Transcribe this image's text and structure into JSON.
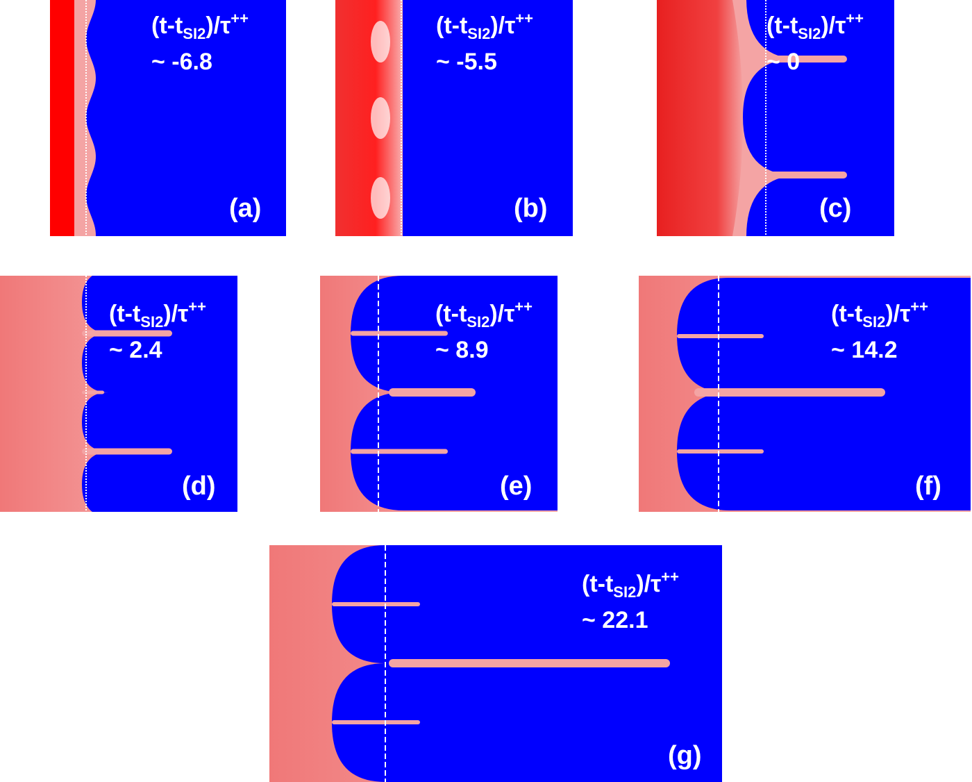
{
  "formula": {
    "base": "(t-t",
    "sub": "SI2",
    "mid": ")/τ",
    "sup": "++"
  },
  "panels": [
    {
      "value": "~ -6.8",
      "label": "(a)"
    },
    {
      "value": "~ -5.5",
      "label": "(b)"
    },
    {
      "value": "~ 0",
      "label": "(c)"
    },
    {
      "value": "~ 2.4",
      "label": "(d)"
    },
    {
      "value": "~ 8.9",
      "label": "(e)"
    },
    {
      "value": "~ 14.2",
      "label": "(f)"
    },
    {
      "value": "~ 22.1",
      "label": "(g)"
    }
  ]
}
